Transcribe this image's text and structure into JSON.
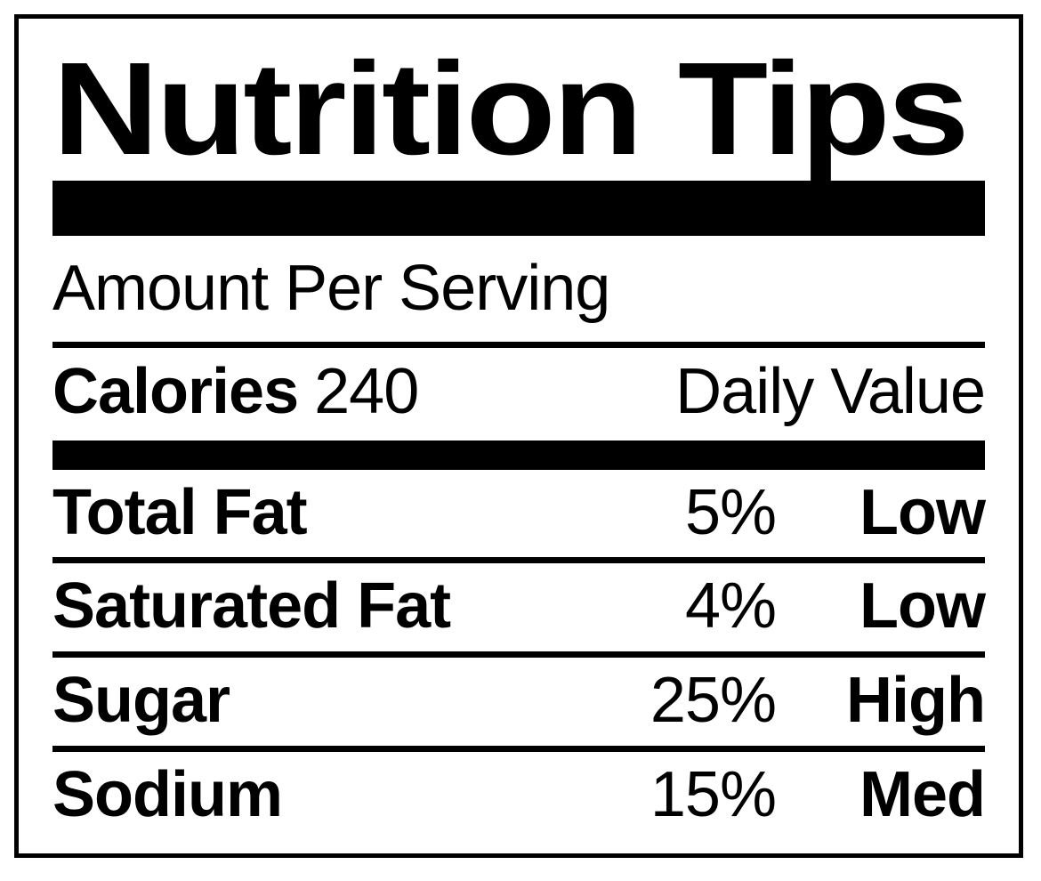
{
  "label": {
    "title": "Nutrition Tips",
    "serving_header": "Amount Per Serving",
    "calories": {
      "label": "Calories",
      "value": "240"
    },
    "daily_value_header": "Daily Value",
    "rows": [
      {
        "label": "Total Fat",
        "percent": "5%",
        "rating": "Low"
      },
      {
        "label": "Saturated Fat",
        "percent": "4%",
        "rating": "Low"
      },
      {
        "label": "Sugar",
        "percent": "25%",
        "rating": "High"
      },
      {
        "label": "Sodium",
        "percent": "15%",
        "rating": "Med"
      }
    ],
    "colors": {
      "ink": "#000000",
      "background": "#ffffff"
    }
  }
}
